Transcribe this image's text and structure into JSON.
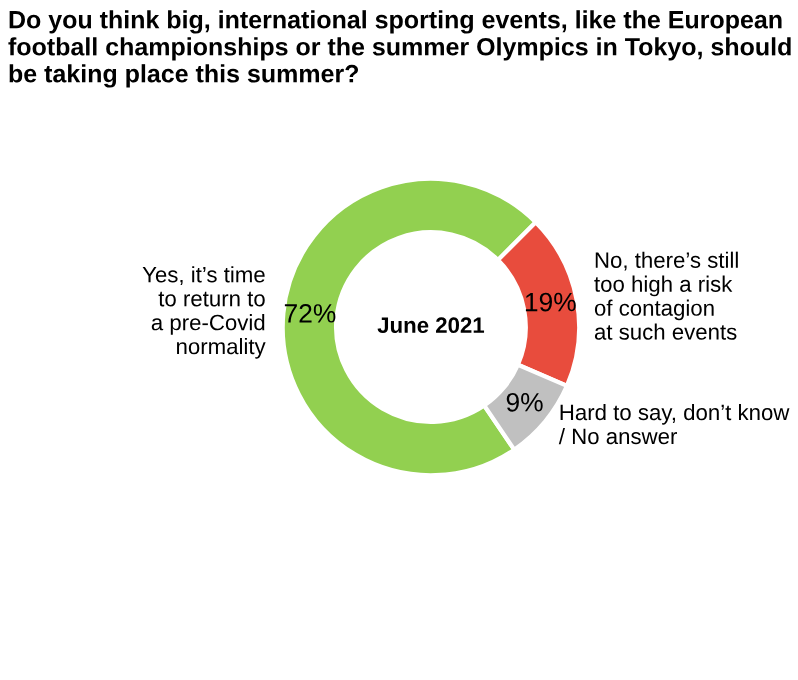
{
  "chart_data": {
    "type": "donut",
    "title": "Do you think big, international sporting events, like the European football championships or the summer Olympics in Tokyo, should be taking place this summer?",
    "categories": [
      "Yes, it’s time\nto return to\na pre-Covid\nnormality",
      "No, there’s still\ntoo high a risk\nof contagion\nat such events",
      "Hard to say, don’t know\n/ No answer"
    ],
    "values": [
      72,
      19,
      9
    ],
    "colors": [
      "#92d050",
      "#e84c3d",
      "#c0c0c0"
    ],
    "value_labels": [
      "72%",
      "19%",
      "9%"
    ],
    "annotations": [
      "June 2021"
    ]
  }
}
